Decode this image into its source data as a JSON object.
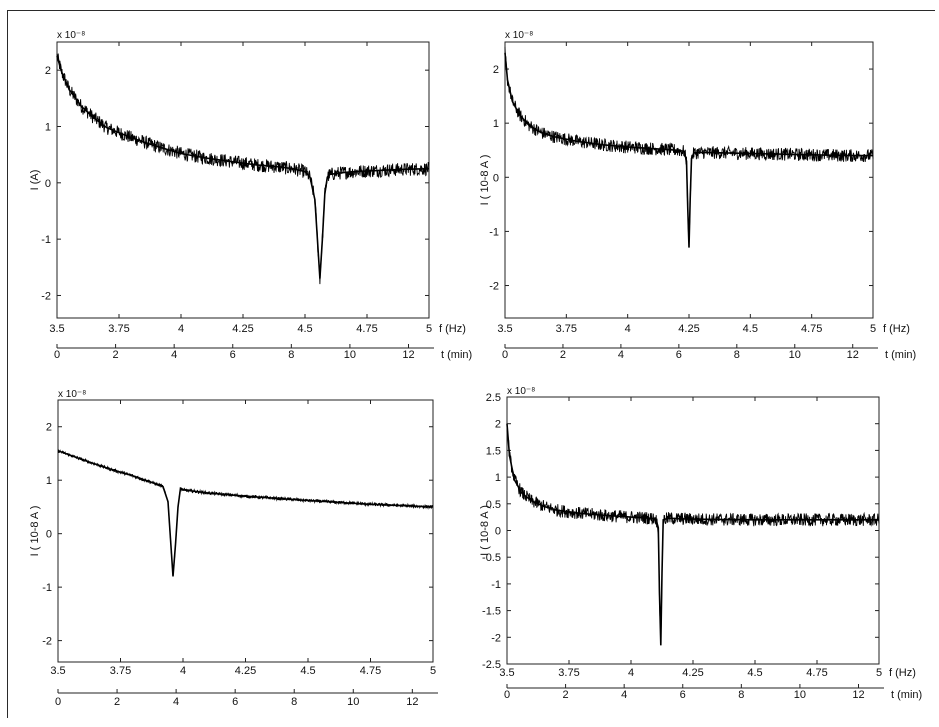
{
  "chart_data": [
    {
      "type": "line",
      "ylabel": "I (A)",
      "yexponent": "x 10⁻⁸",
      "xlabel_f": "f (Hz)",
      "xlabel_t": "t (min)",
      "f_ticks": [
        "3.5",
        "3.75",
        "4",
        "4.25",
        "4.5",
        "4.75",
        "5"
      ],
      "t_ticks": [
        "0",
        "2",
        "4",
        "6",
        "8",
        "10",
        "12"
      ],
      "y_ticks": [
        "2",
        "1",
        "0",
        "-1",
        "-2"
      ],
      "xlim": [
        3.5,
        5.0
      ],
      "ylim": [
        -2.4,
        2.5
      ],
      "series": [
        {
          "x": [
            3.5,
            3.52,
            3.55,
            3.6,
            3.65,
            3.7,
            3.8,
            3.9,
            4.0,
            4.1,
            4.2,
            4.3,
            4.4,
            4.45,
            4.5,
            4.52,
            4.54,
            4.55,
            4.56,
            4.57,
            4.58,
            4.59,
            4.6,
            4.65,
            4.7,
            4.8,
            4.9,
            5.0
          ],
          "y": [
            2.25,
            1.95,
            1.65,
            1.35,
            1.15,
            0.98,
            0.8,
            0.65,
            0.52,
            0.44,
            0.38,
            0.32,
            0.28,
            0.25,
            0.2,
            0.1,
            -0.3,
            -1.0,
            -1.7,
            -1.0,
            -0.2,
            0.1,
            0.15,
            0.18,
            0.2,
            0.22,
            0.24,
            0.25
          ]
        }
      ]
    },
    {
      "type": "line",
      "ylabel": "I ( 10-8 A )",
      "yexponent": "x 10⁻⁸",
      "xlabel_f": "f (Hz)",
      "xlabel_t": "t (min)",
      "f_ticks": [
        "3.5",
        "3.75",
        "4",
        "4.25",
        "4.5",
        "4.75",
        "5"
      ],
      "t_ticks": [
        "0",
        "2",
        "4",
        "6",
        "8",
        "10",
        "12"
      ],
      "y_ticks": [
        "2",
        "1",
        "0",
        "-1",
        "-2"
      ],
      "xlim": [
        3.5,
        5.0
      ],
      "ylim": [
        -2.6,
        2.5
      ],
      "series": [
        {
          "x": [
            3.5,
            3.51,
            3.53,
            3.56,
            3.6,
            3.65,
            3.7,
            3.8,
            3.9,
            4.0,
            4.1,
            4.2,
            4.23,
            4.24,
            4.245,
            4.25,
            4.255,
            4.26,
            4.27,
            4.3,
            4.4,
            4.5,
            4.6,
            4.7,
            4.8,
            4.9,
            5.0
          ],
          "y": [
            2.3,
            1.8,
            1.4,
            1.15,
            0.95,
            0.82,
            0.75,
            0.66,
            0.6,
            0.56,
            0.53,
            0.5,
            0.48,
            0.3,
            -0.6,
            -1.3,
            -0.4,
            0.35,
            0.45,
            0.46,
            0.45,
            0.44,
            0.43,
            0.42,
            0.41,
            0.4,
            0.4
          ]
        }
      ]
    },
    {
      "type": "line",
      "ylabel": "I ( 10-8 A )",
      "yexponent": "x 10⁻⁸",
      "xlabel_f": "",
      "xlabel_t": "",
      "f_ticks": [
        "3.5",
        "3.75",
        "4",
        "4.25",
        "4.5",
        "4.75",
        "5"
      ],
      "t_ticks": [
        "0",
        "2",
        "4",
        "6",
        "8",
        "10",
        "12"
      ],
      "y_ticks": [
        "2",
        "1",
        "0",
        "-1",
        "-2"
      ],
      "xlim": [
        3.5,
        5.0
      ],
      "ylim": [
        -2.4,
        2.5
      ],
      "series": [
        {
          "x": [
            3.5,
            3.6,
            3.7,
            3.8,
            3.88,
            3.92,
            3.94,
            3.95,
            3.96,
            3.97,
            3.98,
            3.99,
            4.0,
            4.1,
            4.25,
            4.5,
            4.75,
            5.0
          ],
          "y": [
            1.55,
            1.38,
            1.22,
            1.08,
            0.95,
            0.88,
            0.6,
            -0.1,
            -0.8,
            -0.2,
            0.5,
            0.85,
            0.82,
            0.76,
            0.7,
            0.62,
            0.55,
            0.5
          ]
        }
      ]
    },
    {
      "type": "line",
      "ylabel": "I ( 10-8 A )",
      "yexponent": "x 10⁻⁸",
      "xlabel_f": "f (Hz)",
      "xlabel_t": "t (min)",
      "f_ticks": [
        "3.5",
        "3.75",
        "4",
        "4.25",
        "4.5",
        "4.75",
        "5"
      ],
      "t_ticks": [
        "0",
        "2",
        "4",
        "6",
        "8",
        "10",
        "12"
      ],
      "y_ticks": [
        "2.5",
        "2",
        "1.5",
        "1",
        "0.5",
        "0",
        "-0.5",
        "-1",
        "-1.5",
        "-2",
        "-2.5"
      ],
      "xlim": [
        3.5,
        5.0
      ],
      "ylim": [
        -2.5,
        2.5
      ],
      "series": [
        {
          "x": [
            3.5,
            3.51,
            3.53,
            3.56,
            3.6,
            3.65,
            3.7,
            3.8,
            3.9,
            4.0,
            4.05,
            4.1,
            4.11,
            4.115,
            4.12,
            4.125,
            4.13,
            4.15,
            4.2,
            4.3,
            4.5,
            4.75,
            5.0
          ],
          "y": [
            2.0,
            1.4,
            0.95,
            0.7,
            0.55,
            0.45,
            0.38,
            0.32,
            0.28,
            0.25,
            0.24,
            0.22,
            0.05,
            -1.2,
            -2.15,
            -0.8,
            0.2,
            0.23,
            0.22,
            0.21,
            0.2,
            0.2,
            0.2
          ]
        }
      ]
    }
  ]
}
